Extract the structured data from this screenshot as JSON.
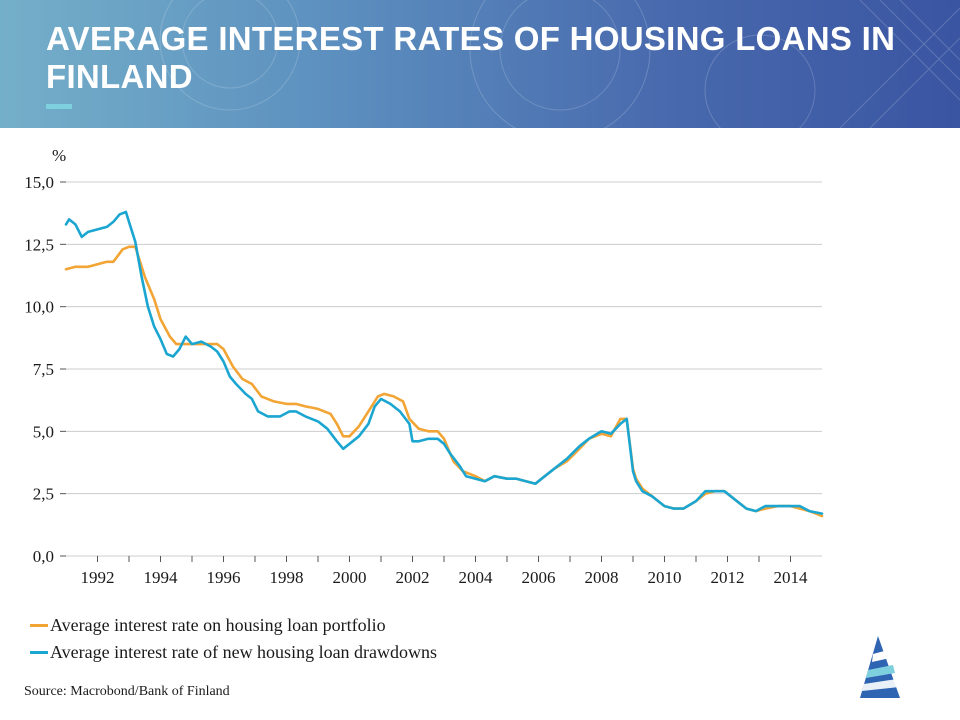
{
  "header": {
    "title": "AVERAGE INTEREST RATES OF HOUSING LOANS IN FINLAND"
  },
  "source": "Source: Macrobond/Bank of Finland",
  "colors": {
    "portfolio": "#f2a535",
    "drawdowns": "#1aa6d1",
    "grid": "#cccccc",
    "accent": "#7fd0de"
  },
  "logo_icon": "bank-of-finland-logo-icon",
  "chart_data": {
    "type": "line",
    "unit_label": "%",
    "ylim": [
      0,
      15
    ],
    "yticks": [
      0,
      2.5,
      5,
      7.5,
      10,
      12.5,
      15
    ],
    "ytick_labels": [
      "0,0",
      "2,5",
      "5,0",
      "7,5",
      "10,0",
      "12,5",
      "15,0"
    ],
    "xlim": [
      1991,
      2015
    ],
    "xticks": [
      1992,
      1994,
      1996,
      1998,
      2000,
      2002,
      2004,
      2006,
      2008,
      2010,
      2012,
      2014
    ],
    "xtick_labels": [
      "1992",
      "1994",
      "1996",
      "1998",
      "2000",
      "2002",
      "2004",
      "2006",
      "2008",
      "2010",
      "2012",
      "2014"
    ],
    "grid": true,
    "legend_position": "bottom-left",
    "series": [
      {
        "name": "Average interest rate on housing loan portfolio",
        "x": [
          1991.0,
          1991.3,
          1991.7,
          1992.0,
          1992.3,
          1992.5,
          1992.8,
          1993.0,
          1993.2,
          1993.5,
          1993.8,
          1994.0,
          1994.3,
          1994.5,
          1995.0,
          1995.5,
          1995.8,
          1996.0,
          1996.3,
          1996.6,
          1996.9,
          1997.2,
          1997.6,
          1998.0,
          1998.3,
          1998.6,
          1999.0,
          1999.4,
          1999.6,
          1999.8,
          2000.0,
          2000.3,
          2000.6,
          2000.9,
          2001.1,
          2001.4,
          2001.7,
          2001.9,
          2002.2,
          2002.5,
          2002.8,
          2003.0,
          2003.3,
          2003.6,
          2004.0,
          2004.3,
          2004.6,
          2005.0,
          2005.3,
          2005.6,
          2005.9,
          2006.2,
          2006.5,
          2006.9,
          2007.3,
          2007.6,
          2008.0,
          2008.3,
          2008.6,
          2008.8,
          2009.0,
          2009.1,
          2009.3,
          2009.6,
          2010.0,
          2010.3,
          2010.6,
          2011.0,
          2011.3,
          2011.6,
          2011.9,
          2012.2,
          2012.6,
          2012.9,
          2013.2,
          2013.6,
          2014.0,
          2014.3,
          2014.6,
          2015.0
        ],
        "values": [
          11.5,
          11.6,
          11.6,
          11.7,
          11.8,
          11.8,
          12.3,
          12.4,
          12.4,
          11.2,
          10.3,
          9.5,
          8.8,
          8.5,
          8.5,
          8.5,
          8.5,
          8.3,
          7.6,
          7.1,
          6.9,
          6.4,
          6.2,
          6.1,
          6.1,
          6.0,
          5.9,
          5.7,
          5.3,
          4.8,
          4.8,
          5.2,
          5.8,
          6.4,
          6.5,
          6.4,
          6.2,
          5.5,
          5.1,
          5.0,
          5.0,
          4.7,
          3.8,
          3.4,
          3.2,
          3.0,
          3.2,
          3.1,
          3.1,
          3.0,
          2.9,
          3.2,
          3.5,
          3.8,
          4.3,
          4.7,
          4.9,
          4.8,
          5.5,
          5.5,
          3.5,
          3.1,
          2.7,
          2.4,
          2.0,
          1.9,
          1.9,
          2.2,
          2.5,
          2.6,
          2.6,
          2.3,
          1.9,
          1.8,
          1.9,
          2.0,
          2.0,
          1.9,
          1.8,
          1.6
        ]
      },
      {
        "name": "Average interest rate of new housing loan drawdowns",
        "x": [
          1991.0,
          1991.1,
          1991.3,
          1991.5,
          1991.7,
          1992.0,
          1992.3,
          1992.5,
          1992.7,
          1992.9,
          1993.0,
          1993.2,
          1993.4,
          1993.6,
          1993.8,
          1994.0,
          1994.2,
          1994.4,
          1994.6,
          1994.8,
          1995.0,
          1995.3,
          1995.6,
          1995.8,
          1996.0,
          1996.2,
          1996.4,
          1996.7,
          1996.9,
          1997.1,
          1997.4,
          1997.8,
          1998.1,
          1998.3,
          1998.6,
          1999.0,
          1999.3,
          1999.6,
          1999.8,
          2000.0,
          2000.3,
          2000.6,
          2000.8,
          2001.0,
          2001.3,
          2001.6,
          2001.9,
          2002.0,
          2002.2,
          2002.5,
          2002.8,
          2003.0,
          2003.2,
          2003.5,
          2003.7,
          2004.0,
          2004.3,
          2004.6,
          2005.0,
          2005.3,
          2005.6,
          2005.9,
          2006.2,
          2006.5,
          2006.9,
          2007.3,
          2007.6,
          2008.0,
          2008.3,
          2008.6,
          2008.8,
          2009.0,
          2009.1,
          2009.3,
          2009.6,
          2010.0,
          2010.3,
          2010.6,
          2011.0,
          2011.3,
          2011.6,
          2011.9,
          2012.2,
          2012.6,
          2012.9,
          2013.2,
          2013.6,
          2014.0,
          2014.3,
          2014.6,
          2015.0
        ],
        "values": [
          13.3,
          13.5,
          13.3,
          12.8,
          13.0,
          13.1,
          13.2,
          13.4,
          13.7,
          13.8,
          13.4,
          12.6,
          11.2,
          10.0,
          9.2,
          8.7,
          8.1,
          8.0,
          8.3,
          8.8,
          8.5,
          8.6,
          8.4,
          8.2,
          7.8,
          7.2,
          6.9,
          6.5,
          6.3,
          5.8,
          5.6,
          5.6,
          5.8,
          5.8,
          5.6,
          5.4,
          5.1,
          4.6,
          4.3,
          4.5,
          4.8,
          5.3,
          6.0,
          6.3,
          6.1,
          5.8,
          5.3,
          4.6,
          4.6,
          4.7,
          4.7,
          4.5,
          4.1,
          3.6,
          3.2,
          3.1,
          3.0,
          3.2,
          3.1,
          3.1,
          3.0,
          2.9,
          3.2,
          3.5,
          3.9,
          4.4,
          4.7,
          5.0,
          4.9,
          5.3,
          5.5,
          3.4,
          3.0,
          2.6,
          2.4,
          2.0,
          1.9,
          1.9,
          2.2,
          2.6,
          2.6,
          2.6,
          2.3,
          1.9,
          1.8,
          2.0,
          2.0,
          2.0,
          2.0,
          1.8,
          1.7
        ]
      }
    ]
  }
}
